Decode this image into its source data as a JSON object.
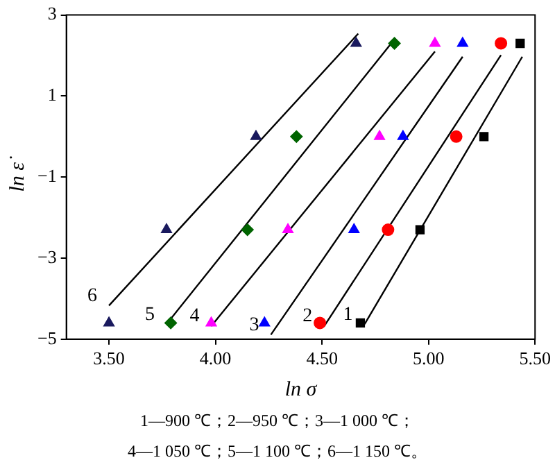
{
  "chart_data": {
    "type": "scatter",
    "xlabel": "ln σ",
    "ylabel": "ln ε̇",
    "xlim": [
      3.3,
      5.5
    ],
    "ylim": [
      -5,
      3
    ],
    "xticks": [
      {
        "value": 3.5,
        "label": "3.50"
      },
      {
        "value": 4,
        "label": "4.00"
      },
      {
        "value": 4.5,
        "label": "4.50"
      },
      {
        "value": 5,
        "label": "5.00"
      },
      {
        "value": 5.5,
        "label": "5.50"
      }
    ],
    "yticks": [
      {
        "value": -5,
        "label": "−5"
      },
      {
        "value": -3,
        "label": "−3"
      },
      {
        "value": -1,
        "label": "−1"
      },
      {
        "value": 1,
        "label": "1"
      },
      {
        "value": 3,
        "label": "3"
      }
    ],
    "grid": false,
    "legend": false,
    "series": [
      {
        "marker": "square",
        "color": "#000000",
        "x": [
          4.68,
          4.96,
          5.26,
          5.43
        ],
        "values": [
          -4.6,
          -2.3,
          0,
          2.3
        ]
      },
      {
        "marker": "circle",
        "color": "#ff0000",
        "x": [
          4.49,
          4.81,
          5.13,
          5.34
        ],
        "values": [
          -4.6,
          -2.3,
          0,
          2.3
        ]
      },
      {
        "marker": "triangle",
        "color": "#0000ff",
        "x": [
          4.23,
          4.65,
          4.88,
          5.16
        ],
        "values": [
          -4.6,
          -2.3,
          0,
          2.3
        ]
      },
      {
        "marker": "triangle",
        "color": "#ff00ff",
        "x": [
          3.98,
          4.34,
          4.77,
          5.03
        ],
        "values": [
          -4.6,
          -2.3,
          0,
          2.3
        ]
      },
      {
        "marker": "diamond",
        "color": "#006400",
        "x": [
          3.79,
          4.15,
          4.38,
          4.84
        ],
        "values": [
          -4.6,
          -2.3,
          0,
          2.3
        ]
      },
      {
        "marker": "triangle",
        "color": "#1a1a5e",
        "x": [
          3.5,
          3.77,
          4.19,
          4.66
        ],
        "values": [
          -4.6,
          -2.3,
          0,
          2.3
        ]
      },
      {
        "type": "line",
        "name": "1",
        "marker": "none",
        "color": "#000000",
        "x": [
          4.7,
          5.44
        ],
        "values": [
          -4.63,
          1.97
        ]
      },
      {
        "type": "line",
        "name": "2",
        "marker": "none",
        "color": "#000000",
        "x": [
          4.51,
          5.34
        ],
        "values": [
          -4.68,
          2.01
        ]
      },
      {
        "type": "line",
        "name": "3",
        "marker": "none",
        "color": "#000000",
        "x": [
          4.26,
          5.16
        ],
        "values": [
          -4.89,
          1.97
        ]
      },
      {
        "type": "line",
        "name": "4",
        "marker": "none",
        "color": "#000000",
        "x": [
          3.98,
          5.03
        ],
        "values": [
          -4.68,
          2.1
        ]
      },
      {
        "type": "line",
        "name": "5",
        "marker": "none",
        "color": "#000000",
        "x": [
          3.77,
          4.84
        ],
        "values": [
          -4.63,
          2.4
        ]
      },
      {
        "type": "line",
        "name": "6",
        "marker": "none",
        "color": "#000000",
        "x": [
          3.5,
          4.67
        ],
        "values": [
          -4.17,
          2.54
        ]
      }
    ],
    "annotations": [
      "1—900 ℃；2—950 ℃；3—1 000 ℃；",
      "4—1 050 ℃；5—1 100 ℃；6—1 150 ℃。"
    ]
  }
}
